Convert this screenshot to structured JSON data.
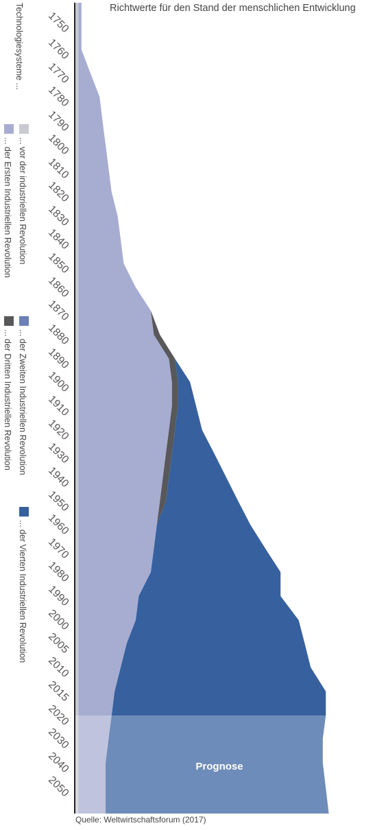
{
  "chart_data": {
    "type": "area",
    "title": "Richtwerte für den Stand der menschlichen Entwicklung",
    "orientation": "vertical-time-axis",
    "years": [
      "1750",
      "1760",
      "1770",
      "1780",
      "1790",
      "1800",
      "1810",
      "1820",
      "1830",
      "1840",
      "1850",
      "1860",
      "1870",
      "1880",
      "1890",
      "1900",
      "1910",
      "1920",
      "1930",
      "1940",
      "1950",
      "1960",
      "1970",
      "1980",
      "1990",
      "2000",
      "2005",
      "2010",
      "2015",
      "2020",
      "2030",
      "2040",
      "2050"
    ],
    "forecast_from_year": "2020",
    "forecast_label": "Prognose",
    "legend_heading": "Technologiesysteme ...",
    "series": [
      {
        "name": "... vor der industriellen Revolution",
        "color": "#c8cad0",
        "values": [
          1,
          1,
          1,
          1,
          1,
          1,
          1,
          1,
          1,
          1,
          1,
          1,
          1,
          1,
          1,
          1,
          1,
          1,
          1,
          1,
          1,
          1,
          1,
          1,
          1,
          1,
          1,
          1,
          1,
          1,
          1,
          1,
          1
        ]
      },
      {
        "name": "... der Ersten Industriellen Revolution",
        "color": "#a7acd1",
        "values": [
          1,
          1,
          4,
          7,
          8,
          9,
          10,
          11,
          13,
          14,
          15,
          19,
          24,
          25,
          30,
          31,
          31,
          30,
          29,
          28,
          27,
          26,
          25,
          24,
          20,
          19,
          16,
          14,
          12,
          11,
          10,
          9,
          9
        ]
      },
      {
        "name": "... der Zweiten Industriellen Revolution",
        "color": "#6c7fb7",
        "values": [
          0,
          0,
          0,
          0,
          0,
          0,
          0,
          0,
          0,
          0,
          0,
          0,
          0,
          0,
          0,
          0,
          0,
          0,
          0,
          0,
          0,
          0,
          0,
          0,
          0,
          0,
          0,
          0,
          0,
          0,
          0,
          0,
          0
        ]
      },
      {
        "name": "... der Dritten Industriellen Revolution",
        "color": "#58585a",
        "values": [
          0,
          0,
          0,
          0,
          0,
          0,
          0,
          0,
          0,
          0,
          0,
          0,
          0,
          2,
          2,
          2,
          2,
          2,
          2,
          2,
          2,
          0,
          0,
          0,
          0,
          0,
          0,
          0,
          0,
          0,
          0,
          0,
          0
        ]
      },
      {
        "name": "... der Vierten Industriellen Revolution",
        "color": "#36609e",
        "values": [
          0,
          0,
          0,
          0,
          0,
          0,
          0,
          0,
          0,
          0,
          0,
          0,
          0,
          0,
          0,
          4,
          6,
          9,
          14,
          19,
          24,
          31,
          37,
          43,
          47,
          54,
          59,
          63,
          70,
          71,
          71,
          72,
          74
        ]
      }
    ],
    "source": "Quelle: Weltwirtschaftsforum (2017)"
  }
}
